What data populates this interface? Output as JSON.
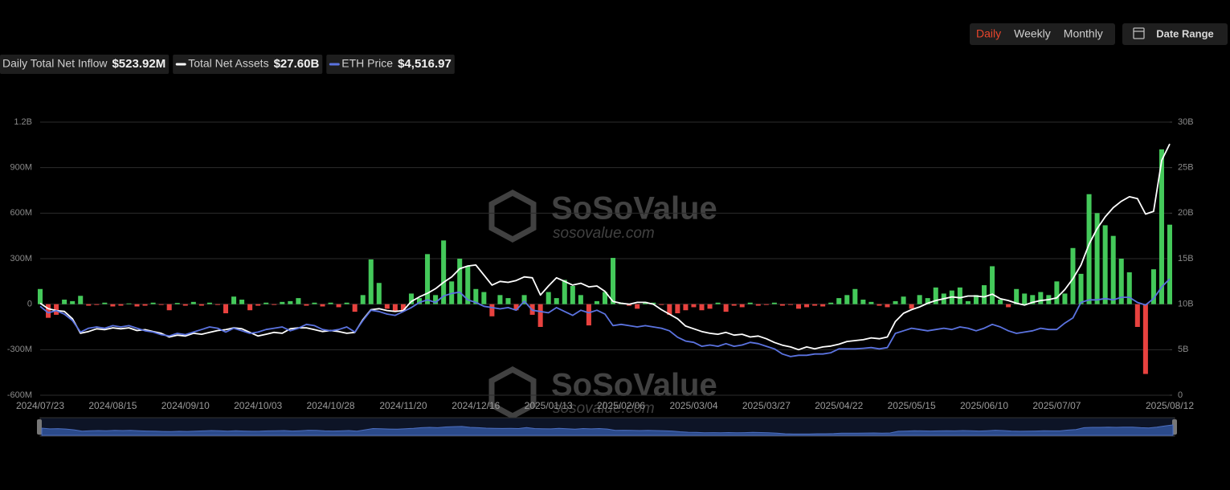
{
  "toolbar": {
    "buttons": [
      "Daily",
      "Weekly",
      "Monthly"
    ],
    "active": 0,
    "date_range": "Date Range"
  },
  "watermark": {
    "name": "SoSoValue",
    "url": "sosovalue.com"
  },
  "chart_data": {
    "type": "combo",
    "categories": [
      "2024/07/23",
      null,
      null,
      null,
      null,
      null,
      null,
      null,
      null,
      "2024/08/15",
      null,
      null,
      null,
      null,
      null,
      null,
      null,
      null,
      "2024/09/10",
      null,
      null,
      null,
      null,
      null,
      null,
      null,
      null,
      "2024/10/03",
      null,
      null,
      null,
      null,
      null,
      null,
      null,
      null,
      "2024/10/28",
      null,
      null,
      null,
      null,
      null,
      null,
      null,
      null,
      "2024/11/20",
      null,
      null,
      null,
      null,
      null,
      null,
      null,
      null,
      "2024/12/16",
      null,
      null,
      null,
      null,
      null,
      null,
      null,
      null,
      "2025/01/13",
      null,
      null,
      null,
      null,
      null,
      null,
      null,
      null,
      "2025/02/06",
      null,
      null,
      null,
      null,
      null,
      null,
      null,
      null,
      "2025/03/04",
      null,
      null,
      null,
      null,
      null,
      null,
      null,
      null,
      "2025/03/27",
      null,
      null,
      null,
      null,
      null,
      null,
      null,
      null,
      "2025/04/22",
      null,
      null,
      null,
      null,
      null,
      null,
      null,
      null,
      "2025/05/15",
      null,
      null,
      null,
      null,
      null,
      null,
      null,
      null,
      "2025/06/10",
      null,
      null,
      null,
      null,
      null,
      null,
      null,
      null,
      "2025/07/07",
      null,
      null,
      null,
      null,
      null,
      null,
      null,
      null,
      null,
      null,
      null,
      null,
      null,
      "2025/08/12"
    ],
    "ylim": [
      -600,
      1200
    ],
    "yticks": [
      {
        "value": -600,
        "label": "-600M"
      },
      {
        "value": -300,
        "label": "-300M"
      },
      0,
      {
        "value": 300,
        "label": "300M"
      },
      {
        "value": 600,
        "label": "600M"
      },
      {
        "value": 900,
        "label": "900M"
      },
      {
        "value": 1200,
        "label": "1.2B"
      }
    ],
    "y2lim": [
      0,
      30
    ],
    "y2ticks": [
      0,
      {
        "value": 5,
        "label": "5B"
      },
      {
        "value": 10,
        "label": "10B"
      },
      {
        "value": 15,
        "label": "15B"
      },
      {
        "value": 20,
        "label": "20B"
      },
      {
        "value": 25,
        "label": "25B"
      },
      {
        "value": 30,
        "label": "30B"
      }
    ],
    "y3lim": [
      0,
      10600
    ],
    "grid": true,
    "legend_values": [
      "$523.92M",
      "$27.60B",
      "$4,516.97"
    ],
    "series": [
      {
        "name": "Daily Total Net Inflow",
        "type": "bar",
        "color": "#44c95a",
        "negative_color": "#e8423f",
        "values": [
          100,
          -90,
          -70,
          30,
          20,
          55,
          -10,
          -5,
          10,
          -15,
          -10,
          5,
          -15,
          -10,
          10,
          -5,
          -40,
          8,
          -10,
          15,
          -10,
          10,
          -5,
          -60,
          50,
          30,
          -40,
          -10,
          10,
          -5,
          15,
          20,
          40,
          -10,
          10,
          -15,
          10,
          -20,
          10,
          -50,
          60,
          295,
          140,
          -30,
          -50,
          -40,
          70,
          40,
          330,
          60,
          420,
          150,
          300,
          250,
          100,
          80,
          -80,
          60,
          40,
          -40,
          60,
          -70,
          -150,
          80,
          40,
          160,
          120,
          60,
          -140,
          20,
          80,
          305,
          10,
          -10,
          -30,
          15,
          10,
          -5,
          -70,
          -60,
          -40,
          -20,
          -40,
          -30,
          10,
          -50,
          -10,
          -20,
          10,
          -10,
          -5,
          10,
          -10,
          -5,
          -30,
          -20,
          -10,
          -15,
          10,
          40,
          60,
          100,
          30,
          15,
          -10,
          -20,
          20,
          50,
          -30,
          60,
          40,
          110,
          70,
          90,
          110,
          20,
          60,
          125,
          250,
          30,
          -20,
          100,
          70,
          60,
          80,
          60,
          150,
          70,
          370,
          200,
          725,
          600,
          520,
          450,
          300,
          210,
          -150,
          -460,
          230,
          1020,
          523.92
        ]
      },
      {
        "name": "Total Net Assets",
        "type": "line",
        "axis": "y2",
        "color": "#ffffff",
        "values": [
          10.1,
          9.5,
          9.3,
          9.2,
          8.4,
          6.8,
          7.0,
          7.3,
          7.2,
          7.4,
          7.3,
          7.4,
          7.1,
          7.2,
          7.0,
          6.8,
          6.4,
          6.6,
          6.5,
          6.8,
          6.7,
          6.9,
          7.1,
          7.2,
          7.4,
          7.3,
          6.9,
          6.5,
          6.7,
          6.9,
          6.8,
          7.3,
          7.4,
          7.4,
          7.2,
          7.0,
          7.1,
          7.0,
          6.8,
          6.9,
          8.3,
          9.4,
          9.5,
          9.3,
          9.2,
          9.3,
          10.3,
          10.8,
          11.2,
          11.7,
          12.4,
          13.0,
          13.9,
          14.2,
          14.3,
          13.2,
          12.1,
          12.5,
          12.4,
          12.6,
          13.0,
          12.9,
          11.0,
          12.0,
          12.9,
          12.5,
          12.1,
          12.3,
          11.9,
          12.0,
          11.4,
          10.3,
          10.1,
          10.0,
          10.2,
          10.2,
          10.0,
          9.4,
          8.9,
          8.4,
          7.6,
          7.3,
          7.0,
          6.8,
          6.7,
          6.9,
          6.6,
          6.7,
          6.4,
          6.5,
          6.2,
          5.8,
          5.5,
          5.3,
          5.0,
          5.3,
          5.1,
          5.3,
          5.4,
          5.6,
          5.9,
          6.0,
          6.1,
          6.3,
          6.2,
          6.4,
          8.1,
          9.0,
          9.4,
          9.7,
          10.1,
          10.4,
          10.6,
          10.8,
          10.7,
          10.9,
          10.9,
          10.8,
          11.1,
          10.6,
          10.4,
          10.1,
          9.9,
          10.2,
          10.4,
          10.5,
          10.7,
          11.6,
          12.8,
          14.3,
          16.6,
          18.3,
          19.6,
          20.6,
          21.3,
          21.8,
          21.6,
          19.9,
          20.2,
          25.8,
          27.6
        ]
      },
      {
        "name": "ETH Price",
        "type": "line",
        "axis": "y3",
        "color": "#5b73e0",
        "values": [
          3450,
          3200,
          3280,
          3150,
          2900,
          2450,
          2600,
          2650,
          2600,
          2700,
          2650,
          2700,
          2600,
          2500,
          2450,
          2350,
          2300,
          2400,
          2350,
          2450,
          2550,
          2650,
          2600,
          2450,
          2600,
          2500,
          2400,
          2450,
          2550,
          2600,
          2650,
          2500,
          2600,
          2750,
          2700,
          2550,
          2500,
          2550,
          2650,
          2450,
          2900,
          3300,
          3250,
          3150,
          3100,
          3250,
          3400,
          3600,
          3700,
          3600,
          3850,
          3950,
          4000,
          3700,
          3600,
          3450,
          3400,
          3350,
          3400,
          3300,
          3650,
          3300,
          3250,
          3200,
          3400,
          3250,
          3100,
          3300,
          3200,
          3300,
          3150,
          2700,
          2750,
          2700,
          2650,
          2700,
          2650,
          2600,
          2500,
          2250,
          2100,
          2050,
          1900,
          1950,
          1900,
          2000,
          1900,
          1950,
          2050,
          2000,
          1900,
          1800,
          1600,
          1500,
          1550,
          1550,
          1600,
          1600,
          1650,
          1800,
          1800,
          1800,
          1820,
          1850,
          1800,
          1850,
          2400,
          2500,
          2600,
          2550,
          2500,
          2550,
          2600,
          2550,
          2650,
          2600,
          2500,
          2600,
          2750,
          2650,
          2500,
          2400,
          2450,
          2500,
          2600,
          2550,
          2550,
          2800,
          3000,
          3600,
          3700,
          3700,
          3750,
          3700,
          3800,
          3800,
          3600,
          3500,
          3750,
          4200,
          4516.97
        ]
      }
    ]
  }
}
